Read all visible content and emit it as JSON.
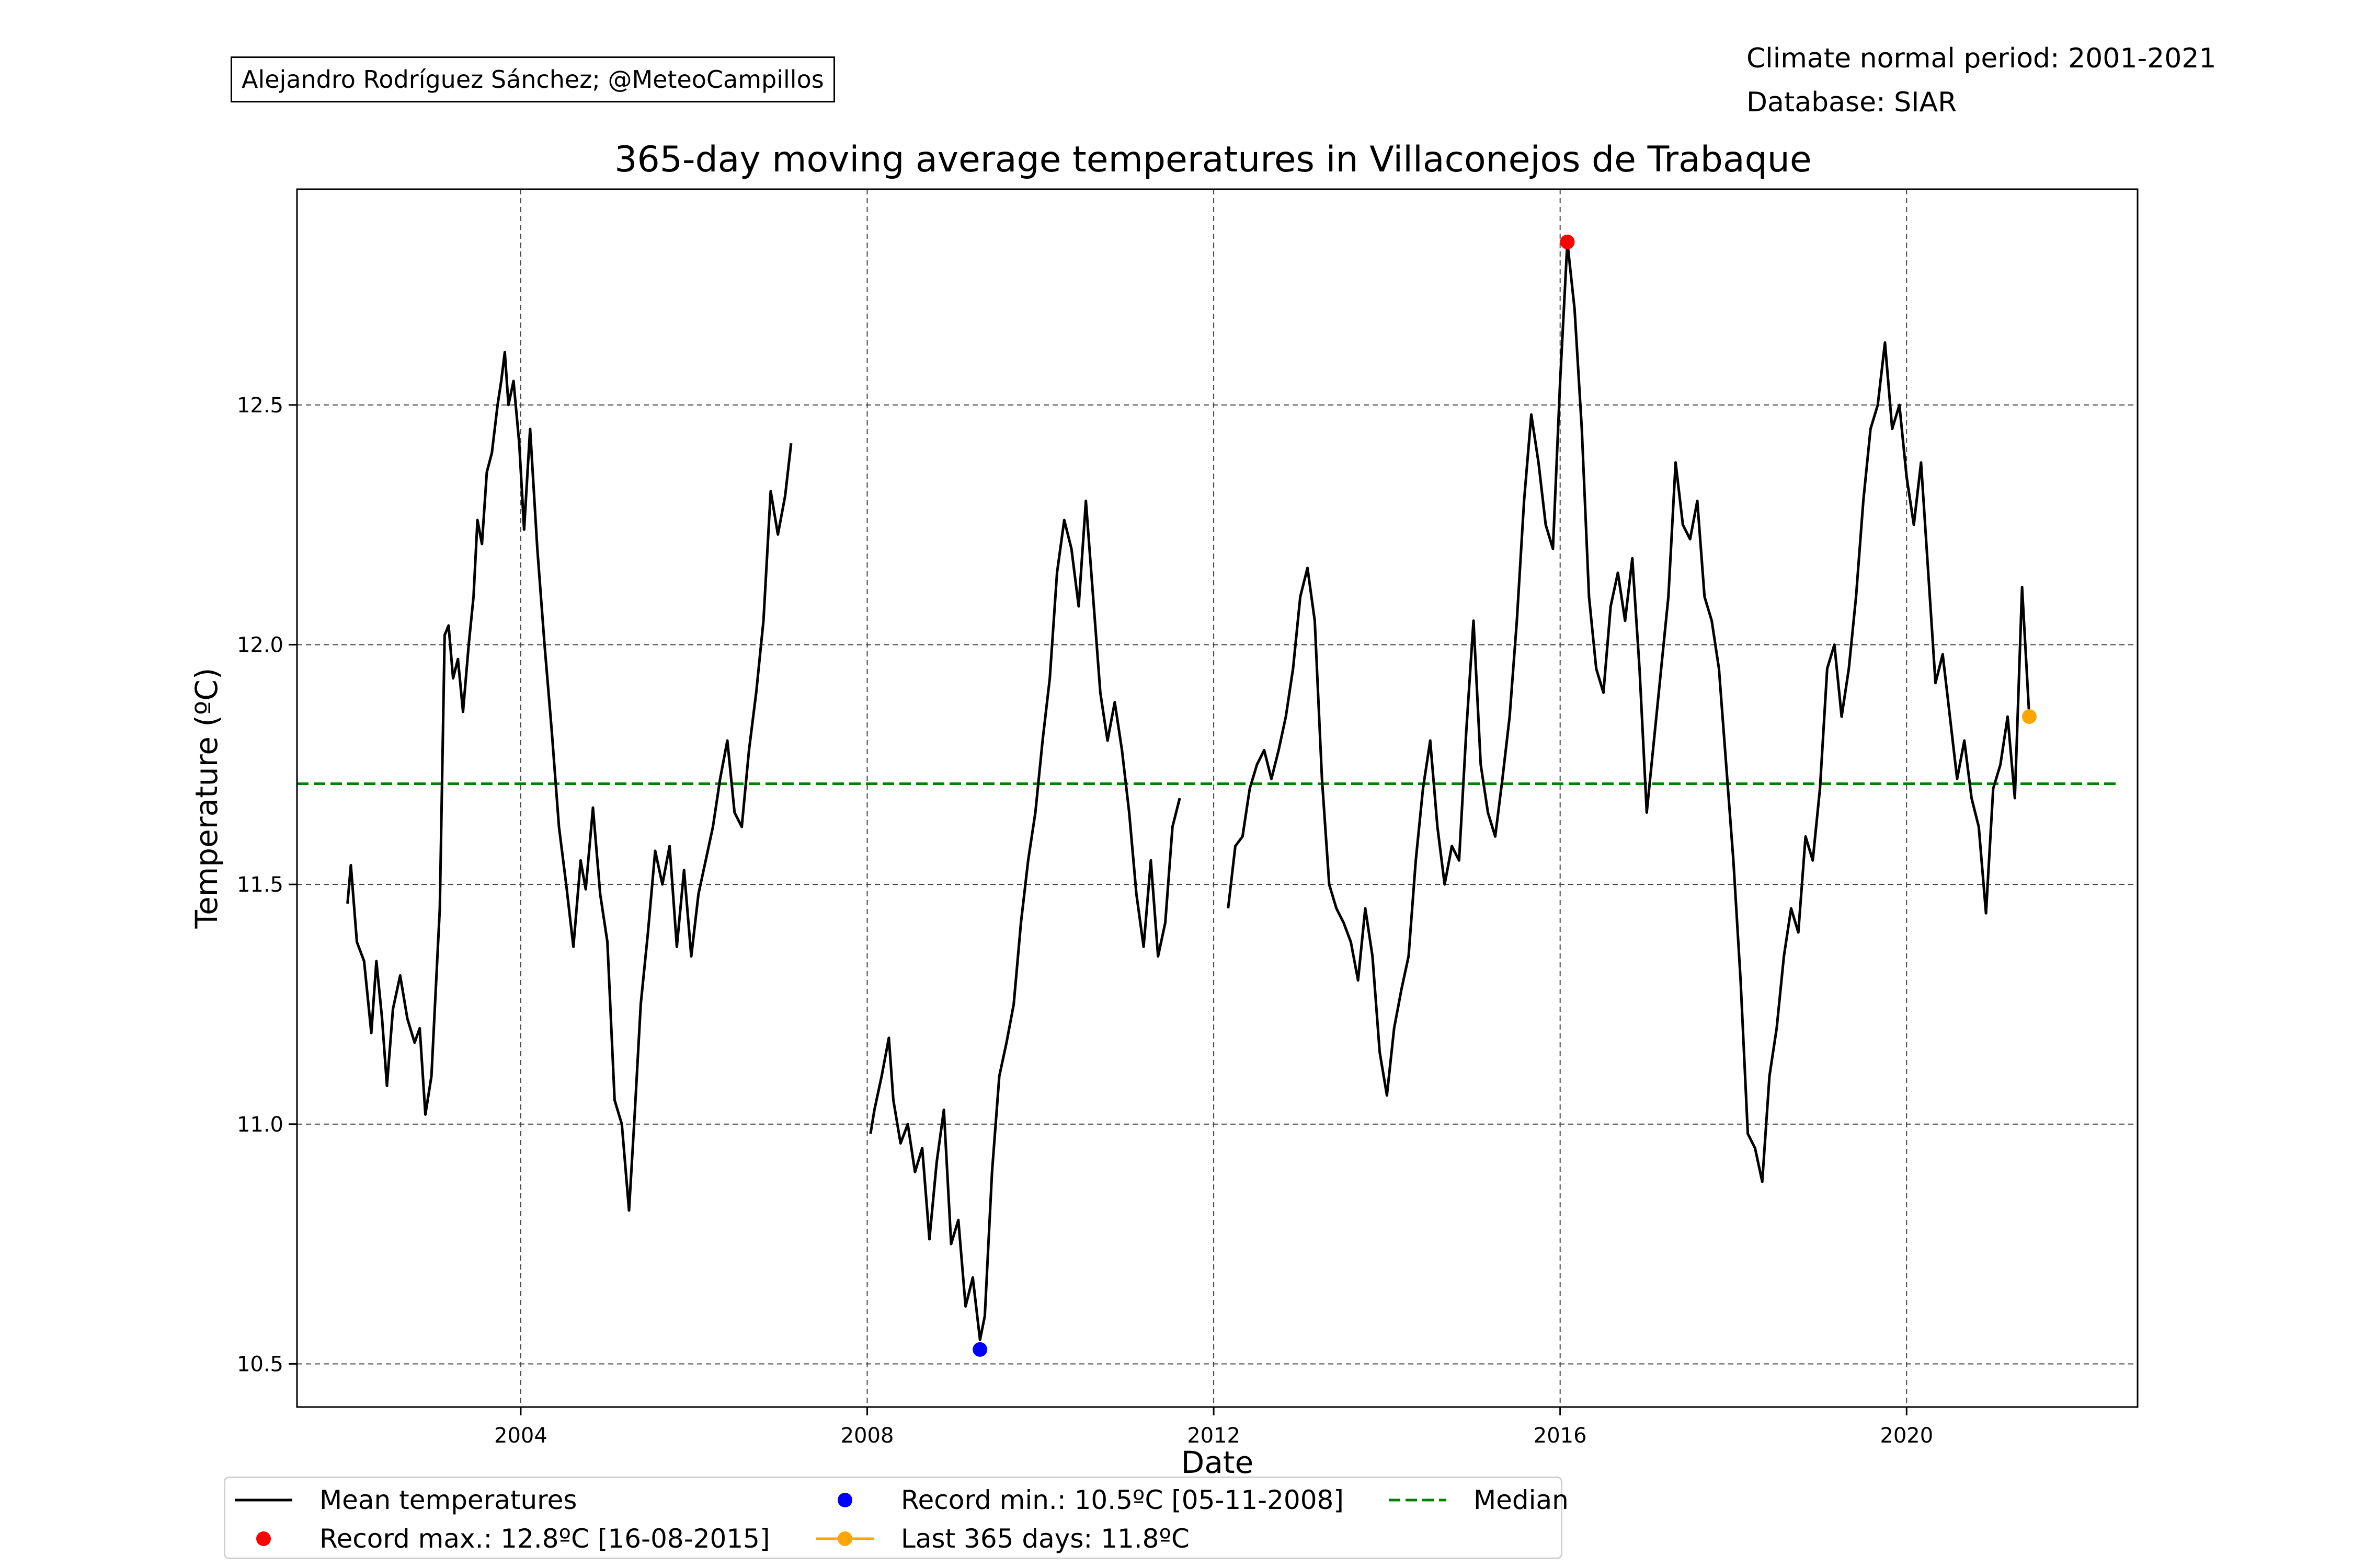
{
  "header": {
    "author": "Alejandro Rodríguez Sánchez; @MeteoCampillos",
    "normal_period": "Climate normal period: 2001-2021",
    "database": "Database: SIAR"
  },
  "chart_data": {
    "type": "line",
    "title": "365-day moving average temperatures in Villaconejos de Trabaque",
    "xlabel": "Date",
    "ylabel": "Temperature (ºC)",
    "xlim": [
      "2001-06-01",
      "2022-09-01"
    ],
    "ylim": [
      10.41,
      12.95
    ],
    "x_ticks": [
      "2004",
      "2008",
      "2012",
      "2016",
      "2020"
    ],
    "y_ticks": [
      "10.5",
      "11.0",
      "11.5",
      "12.0",
      "12.5"
    ],
    "grid": true,
    "legend_position": "bottom",
    "colors": {
      "mean": "#000000",
      "record_max": "#ff0000",
      "record_min": "#0000ff",
      "last": "#ffa500",
      "median": "#008000"
    },
    "series": [
      {
        "name": "Mean temperatures",
        "segments": [
          [
            [
              "2002-01-01",
              11.46
            ],
            [
              "2002-01-15",
              11.54
            ],
            [
              "2002-02-10",
              11.38
            ],
            [
              "2002-03-10",
              11.34
            ],
            [
              "2002-04-10",
              11.19
            ],
            [
              "2002-05-01",
              11.34
            ],
            [
              "2002-05-25",
              11.22
            ],
            [
              "2002-06-15",
              11.08
            ],
            [
              "2002-07-10",
              11.24
            ],
            [
              "2002-08-10",
              11.31
            ],
            [
              "2002-09-10",
              11.22
            ],
            [
              "2002-10-10",
              11.17
            ],
            [
              "2002-11-01",
              11.2
            ],
            [
              "2002-11-25",
              11.02
            ],
            [
              "2002-12-20",
              11.1
            ],
            [
              "2003-01-25",
              11.45
            ],
            [
              "2003-02-15",
              12.02
            ],
            [
              "2003-03-01",
              12.04
            ],
            [
              "2003-03-20",
              11.93
            ],
            [
              "2003-04-10",
              11.97
            ],
            [
              "2003-05-01",
              11.86
            ],
            [
              "2003-05-25",
              12.0
            ],
            [
              "2003-06-15",
              12.1
            ],
            [
              "2003-07-01",
              12.26
            ],
            [
              "2003-07-20",
              12.21
            ],
            [
              "2003-08-10",
              12.36
            ],
            [
              "2003-09-01",
              12.4
            ],
            [
              "2003-09-25",
              12.5
            ],
            [
              "2003-10-10",
              12.55
            ],
            [
              "2003-10-25",
              12.61
            ],
            [
              "2003-11-10",
              12.5
            ],
            [
              "2003-12-01",
              12.55
            ],
            [
              "2003-12-25",
              12.42
            ],
            [
              "2004-01-15",
              12.24
            ],
            [
              "2004-02-10",
              12.45
            ],
            [
              "2004-03-10",
              12.2
            ],
            [
              "2004-04-10",
              12.0
            ],
            [
              "2004-05-10",
              11.82
            ],
            [
              "2004-06-10",
              11.62
            ],
            [
              "2004-07-10",
              11.5
            ],
            [
              "2004-08-10",
              11.37
            ],
            [
              "2004-09-10",
              11.55
            ],
            [
              "2004-10-01",
              11.49
            ],
            [
              "2004-11-01",
              11.66
            ],
            [
              "2004-12-01",
              11.48
            ],
            [
              "2005-01-01",
              11.38
            ],
            [
              "2005-02-01",
              11.05
            ],
            [
              "2005-03-01",
              11.0
            ],
            [
              "2005-04-01",
              10.82
            ],
            [
              "2005-04-25",
              11.02
            ],
            [
              "2005-05-20",
              11.25
            ],
            [
              "2005-06-20",
              11.4
            ],
            [
              "2005-07-20",
              11.57
            ],
            [
              "2005-08-20",
              11.5
            ],
            [
              "2005-09-20",
              11.58
            ],
            [
              "2005-10-20",
              11.37
            ],
            [
              "2005-11-20",
              11.53
            ],
            [
              "2005-12-20",
              11.35
            ],
            [
              "2006-01-20",
              11.48
            ],
            [
              "2006-02-20",
              11.55
            ],
            [
              "2006-03-20",
              11.62
            ],
            [
              "2006-04-20",
              11.72
            ],
            [
              "2006-05-20",
              11.8
            ],
            [
              "2006-06-20",
              11.65
            ],
            [
              "2006-07-20",
              11.62
            ],
            [
              "2006-08-20",
              11.78
            ],
            [
              "2006-09-20",
              11.9
            ],
            [
              "2006-10-20",
              12.05
            ],
            [
              "2006-11-20",
              12.32
            ],
            [
              "2006-12-20",
              12.23
            ],
            [
              "2007-01-20",
              12.31
            ],
            [
              "2007-02-15",
              12.42
            ]
          ],
          [
            [
              "2008-01-15",
              10.98
            ],
            [
              "2008-02-01",
              11.03
            ],
            [
              "2008-03-01",
              11.1
            ],
            [
              "2008-04-01",
              11.18
            ],
            [
              "2008-04-20",
              11.05
            ],
            [
              "2008-05-20",
              10.96
            ],
            [
              "2008-06-20",
              11.0
            ],
            [
              "2008-07-20",
              10.9
            ],
            [
              "2008-08-20",
              10.95
            ],
            [
              "2008-09-20",
              10.76
            ],
            [
              "2008-10-20",
              10.92
            ],
            [
              "2008-11-20",
              11.03
            ],
            [
              "2008-12-20",
              10.75
            ],
            [
              "2009-01-20",
              10.8
            ],
            [
              "2009-02-20",
              10.62
            ],
            [
              "2009-03-20",
              10.68
            ],
            [
              "2009-04-20",
              10.55
            ],
            [
              "2009-05-10",
              10.6
            ],
            [
              "2009-06-10",
              10.9
            ],
            [
              "2009-07-10",
              11.1
            ],
            [
              "2009-08-10",
              11.17
            ],
            [
              "2009-09-10",
              11.25
            ],
            [
              "2009-10-10",
              11.42
            ],
            [
              "2009-11-10",
              11.55
            ],
            [
              "2009-12-10",
              11.65
            ],
            [
              "2010-01-10",
              11.8
            ],
            [
              "2010-02-10",
              11.93
            ],
            [
              "2010-03-10",
              12.15
            ],
            [
              "2010-04-10",
              12.26
            ],
            [
              "2010-05-10",
              12.2
            ],
            [
              "2010-06-10",
              12.08
            ],
            [
              "2010-07-10",
              12.3
            ],
            [
              "2010-08-10",
              12.1
            ],
            [
              "2010-09-10",
              11.9
            ],
            [
              "2010-10-10",
              11.8
            ],
            [
              "2010-11-10",
              11.88
            ],
            [
              "2010-12-10",
              11.78
            ],
            [
              "2011-01-10",
              11.65
            ],
            [
              "2011-02-10",
              11.48
            ],
            [
              "2011-03-10",
              11.37
            ],
            [
              "2011-04-10",
              11.55
            ],
            [
              "2011-05-10",
              11.35
            ],
            [
              "2011-06-10",
              11.42
            ],
            [
              "2011-07-10",
              11.62
            ],
            [
              "2011-08-10",
              11.68
            ]
          ],
          [
            [
              "2012-03-01",
              11.45
            ],
            [
              "2012-04-01",
              11.58
            ],
            [
              "2012-05-01",
              11.6
            ],
            [
              "2012-06-01",
              11.7
            ],
            [
              "2012-07-01",
              11.75
            ],
            [
              "2012-08-01",
              11.78
            ],
            [
              "2012-09-01",
              11.72
            ],
            [
              "2012-10-01",
              11.78
            ],
            [
              "2012-11-01",
              11.85
            ],
            [
              "2012-12-01",
              11.95
            ],
            [
              "2013-01-01",
              12.1
            ],
            [
              "2013-02-01",
              12.16
            ],
            [
              "2013-03-01",
              12.05
            ],
            [
              "2013-04-01",
              11.72
            ],
            [
              "2013-05-01",
              11.5
            ],
            [
              "2013-06-01",
              11.45
            ],
            [
              "2013-07-01",
              11.42
            ],
            [
              "2013-08-01",
              11.38
            ],
            [
              "2013-09-01",
              11.3
            ],
            [
              "2013-10-01",
              11.45
            ],
            [
              "2013-11-01",
              11.35
            ],
            [
              "2013-12-01",
              11.15
            ],
            [
              "2014-01-01",
              11.06
            ],
            [
              "2014-02-01",
              11.2
            ],
            [
              "2014-03-01",
              11.28
            ],
            [
              "2014-04-01",
              11.35
            ],
            [
              "2014-05-01",
              11.55
            ],
            [
              "2014-06-01",
              11.7
            ],
            [
              "2014-07-01",
              11.8
            ],
            [
              "2014-08-01",
              11.62
            ],
            [
              "2014-09-01",
              11.5
            ],
            [
              "2014-10-01",
              11.58
            ],
            [
              "2014-11-01",
              11.55
            ],
            [
              "2014-12-01",
              11.82
            ],
            [
              "2015-01-01",
              12.05
            ],
            [
              "2015-02-01",
              11.75
            ],
            [
              "2015-03-01",
              11.65
            ],
            [
              "2015-04-01",
              11.6
            ],
            [
              "2015-05-01",
              11.72
            ],
            [
              "2015-06-01",
              11.85
            ],
            [
              "2015-07-01",
              12.05
            ],
            [
              "2015-08-01",
              12.3
            ],
            [
              "2015-09-01",
              12.48
            ],
            [
              "2015-10-01",
              12.38
            ],
            [
              "2015-11-01",
              12.25
            ],
            [
              "2015-12-01",
              12.2
            ],
            [
              "2016-01-01",
              12.55
            ],
            [
              "2016-02-01",
              12.84
            ],
            [
              "2016-03-01",
              12.7
            ],
            [
              "2016-04-01",
              12.45
            ],
            [
              "2016-05-01",
              12.1
            ],
            [
              "2016-06-01",
              11.95
            ],
            [
              "2016-07-01",
              11.9
            ],
            [
              "2016-08-01",
              12.08
            ],
            [
              "2016-09-01",
              12.15
            ],
            [
              "2016-10-01",
              12.05
            ],
            [
              "2016-11-01",
              12.18
            ],
            [
              "2016-12-01",
              11.95
            ],
            [
              "2017-01-01",
              11.65
            ],
            [
              "2017-02-01",
              11.8
            ],
            [
              "2017-03-01",
              11.95
            ],
            [
              "2017-04-01",
              12.1
            ],
            [
              "2017-05-01",
              12.38
            ],
            [
              "2017-06-01",
              12.25
            ],
            [
              "2017-07-01",
              12.22
            ],
            [
              "2017-08-01",
              12.3
            ],
            [
              "2017-09-01",
              12.1
            ],
            [
              "2017-10-01",
              12.05
            ],
            [
              "2017-11-01",
              11.95
            ],
            [
              "2017-12-01",
              11.75
            ],
            [
              "2018-01-01",
              11.55
            ],
            [
              "2018-02-01",
              11.3
            ],
            [
              "2018-03-01",
              10.98
            ],
            [
              "2018-04-01",
              10.95
            ],
            [
              "2018-05-01",
              10.88
            ],
            [
              "2018-06-01",
              11.1
            ],
            [
              "2018-07-01",
              11.2
            ],
            [
              "2018-08-01",
              11.35
            ],
            [
              "2018-09-01",
              11.45
            ],
            [
              "2018-10-01",
              11.4
            ],
            [
              "2018-11-01",
              11.6
            ],
            [
              "2018-12-01",
              11.55
            ],
            [
              "2019-01-01",
              11.7
            ],
            [
              "2019-02-01",
              11.95
            ],
            [
              "2019-03-01",
              12.0
            ],
            [
              "2019-04-01",
              11.85
            ],
            [
              "2019-05-01",
              11.95
            ],
            [
              "2019-06-01",
              12.1
            ],
            [
              "2019-07-01",
              12.3
            ],
            [
              "2019-08-01",
              12.45
            ],
            [
              "2019-09-01",
              12.5
            ],
            [
              "2019-10-01",
              12.63
            ],
            [
              "2019-11-01",
              12.45
            ],
            [
              "2019-12-01",
              12.5
            ],
            [
              "2020-01-01",
              12.35
            ],
            [
              "2020-02-01",
              12.25
            ],
            [
              "2020-03-01",
              12.38
            ],
            [
              "2020-04-01",
              12.15
            ],
            [
              "2020-05-01",
              11.92
            ],
            [
              "2020-06-01",
              11.98
            ],
            [
              "2020-07-01",
              11.85
            ],
            [
              "2020-08-01",
              11.72
            ],
            [
              "2020-09-01",
              11.8
            ],
            [
              "2020-10-01",
              11.68
            ],
            [
              "2020-11-01",
              11.62
            ],
            [
              "2020-12-01",
              11.44
            ],
            [
              "2021-01-01",
              11.7
            ],
            [
              "2021-02-01",
              11.75
            ],
            [
              "2021-03-01",
              11.85
            ],
            [
              "2021-04-01",
              11.68
            ],
            [
              "2021-05-01",
              12.12
            ],
            [
              "2021-06-01",
              11.85
            ]
          ]
        ]
      }
    ],
    "median": {
      "name": "Median",
      "value": 11.71,
      "x_start": "2001-06-01",
      "x_end": "2022-06-01"
    },
    "markers": [
      {
        "name": "Record max.: 12.8ºC [16-08-2015]",
        "x": "2016-02-01",
        "y": 12.84,
        "color": "#ff0000"
      },
      {
        "name": "Record min.: 10.5ºC [05-11-2008]",
        "x": "2009-04-20",
        "y": 10.53,
        "color": "#0000ff"
      },
      {
        "name": "Last 365 days: 11.8ºC",
        "x": "2021-06-01",
        "y": 11.85,
        "color": "#ffa500"
      }
    ],
    "legend": [
      "Mean temperatures",
      "Record max.: 12.8ºC [16-08-2015]",
      "Record min.: 10.5ºC [05-11-2008]",
      "Last 365 days: 11.8ºC",
      "Median"
    ]
  }
}
